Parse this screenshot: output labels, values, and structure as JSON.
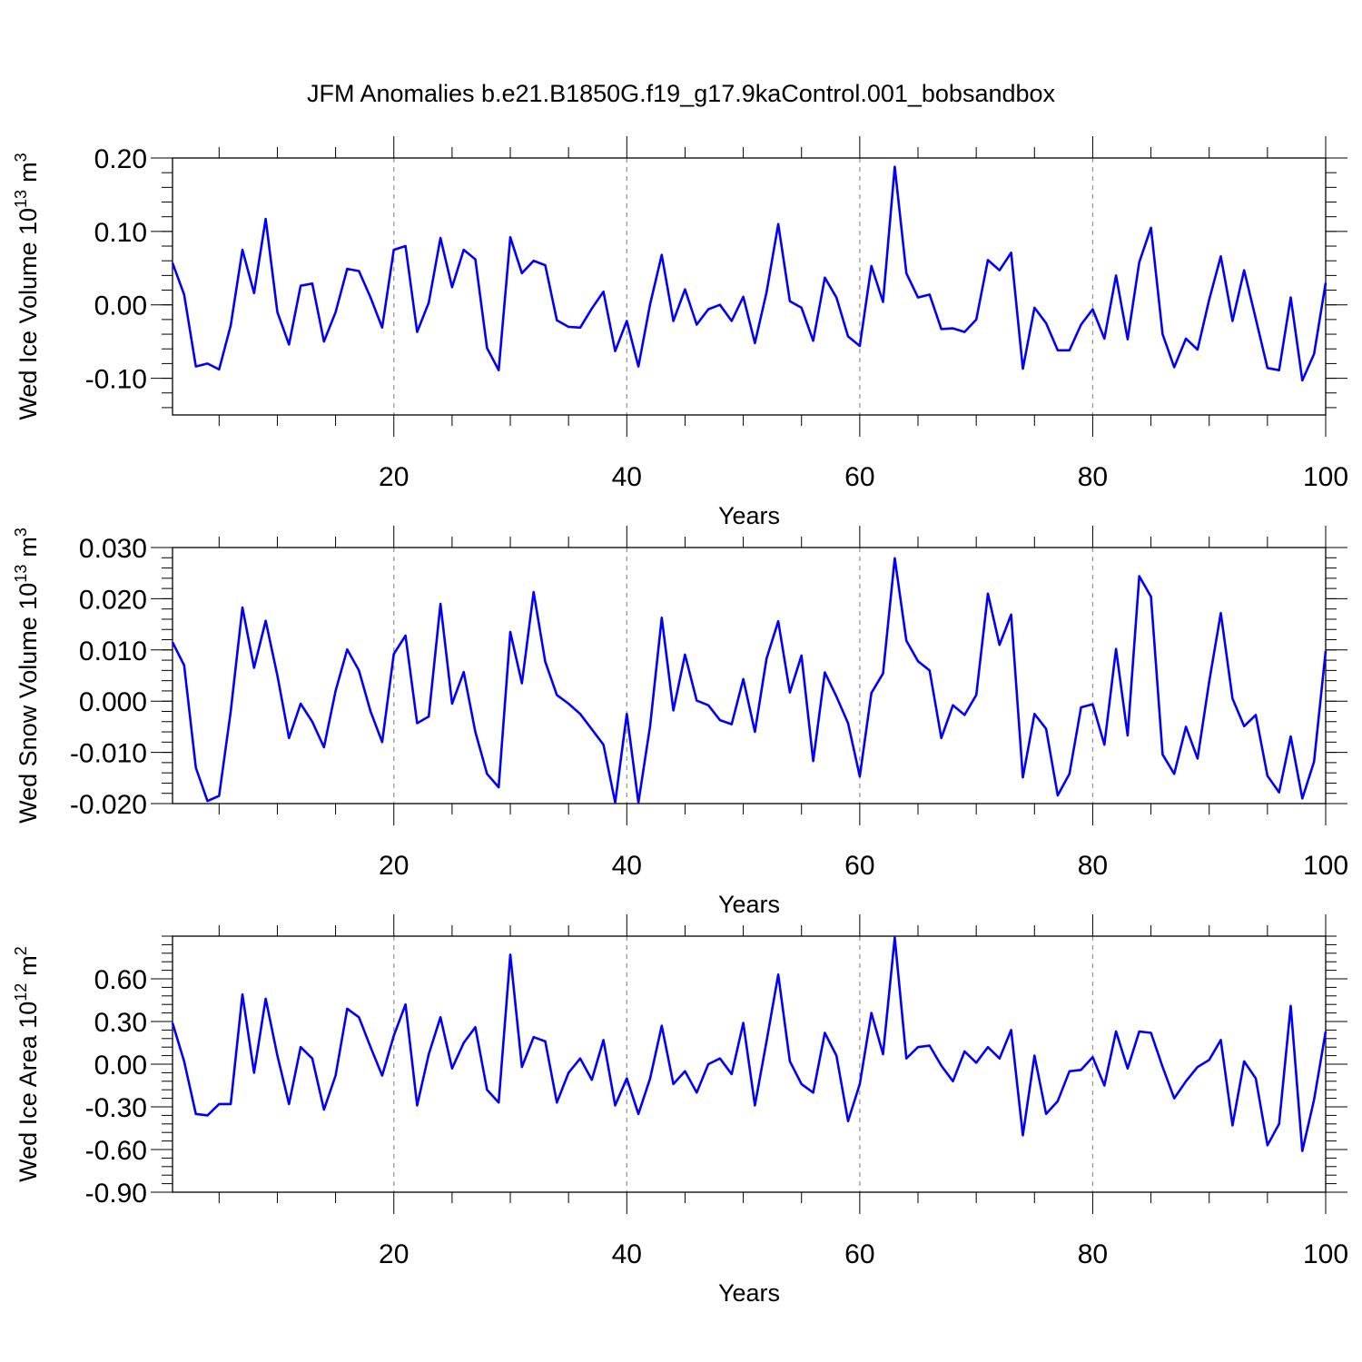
{
  "chart_data": [
    {
      "type": "line",
      "title": "JFM Anomalies b.e21.B1850G.f19_g17.9kaControl.001_bobsandbox",
      "xlabel": "Years",
      "ylabel": "Wed Ice Volume 10",
      "ylabel_sup": "13",
      "ylabel_unit": "m",
      "ylabel_unit_sup": "3",
      "xlim": [
        1,
        100
      ],
      "ylim": [
        -0.15,
        0.2
      ],
      "x_ticks": [
        "20",
        "40",
        "60",
        "80",
        "100"
      ],
      "y_ticks": [
        "-0.10",
        "0.00",
        "0.10",
        "0.20"
      ],
      "grid": "vertical dashed at 20, 40, 60, 80",
      "series": [
        {
          "name": "Wed Ice Volume",
          "color": "#0000ff",
          "values": [
            0.057,
            0.014,
            -0.084,
            -0.08,
            -0.088,
            -0.028,
            0.075,
            0.016,
            0.117,
            -0.01,
            -0.054,
            0.026,
            0.029,
            -0.05,
            -0.01,
            0.049,
            0.046,
            0.01,
            -0.031,
            0.075,
            0.08,
            -0.037,
            0.003,
            0.091,
            0.024,
            0.075,
            0.062,
            -0.059,
            -0.089,
            0.092,
            0.043,
            0.06,
            0.054,
            -0.021,
            -0.03,
            -0.031,
            -0.005,
            0.018,
            -0.063,
            -0.022,
            -0.084,
            0.001,
            0.068,
            -0.022,
            0.021,
            -0.027,
            -0.006,
            0.0,
            -0.022,
            0.011,
            -0.052,
            0.017,
            0.11,
            0.005,
            -0.004,
            -0.049,
            0.037,
            0.01,
            -0.043,
            -0.056,
            0.053,
            0.004,
            0.188,
            0.043,
            0.01,
            0.014,
            -0.033,
            -0.032,
            -0.037,
            -0.02,
            0.061,
            0.047,
            0.071,
            -0.087,
            -0.004,
            -0.025,
            -0.062,
            -0.062,
            -0.027,
            -0.006,
            -0.046,
            0.04,
            -0.047,
            0.058,
            0.105,
            -0.04,
            -0.085,
            -0.046,
            -0.061,
            0.007,
            0.066,
            -0.022,
            0.047,
            -0.019,
            -0.086,
            -0.089,
            0.01,
            -0.103,
            -0.067,
            0.03
          ]
        }
      ]
    },
    {
      "type": "line",
      "xlabel": "Years",
      "ylabel": "Wed Snow Volume 10",
      "ylabel_sup": "13",
      "ylabel_unit": "m",
      "ylabel_unit_sup": "3",
      "xlim": [
        1,
        100
      ],
      "ylim": [
        -0.02,
        0.03
      ],
      "x_ticks": [
        "20",
        "40",
        "60",
        "80",
        "100"
      ],
      "y_ticks": [
        "-0.020",
        "-0.010",
        "0.000",
        "0.010",
        "0.020",
        "0.030"
      ],
      "grid": "vertical dashed at 20, 40, 60, 80",
      "series": [
        {
          "name": "Wed Snow Volume",
          "color": "#0000ff",
          "values": [
            0.0115,
            0.007,
            -0.013,
            -0.0195,
            -0.0185,
            -0.002,
            0.0183,
            0.0065,
            0.0157,
            0.005,
            -0.0072,
            -0.0005,
            -0.004,
            -0.009,
            0.002,
            0.0101,
            0.006,
            -0.002,
            -0.008,
            0.0092,
            0.0128,
            -0.0043,
            -0.003,
            0.019,
            -0.0005,
            0.0057,
            -0.006,
            -0.0142,
            -0.0168,
            0.0135,
            0.0035,
            0.0213,
            0.0077,
            0.0012,
            -0.0005,
            -0.0025,
            -0.0055,
            -0.0085,
            -0.0198,
            -0.0025,
            -0.0198,
            -0.0048,
            0.0163,
            -0.0018,
            0.0091,
            0.0001,
            -0.0008,
            -0.0037,
            -0.0045,
            0.0043,
            -0.006,
            0.0083,
            0.0156,
            0.0017,
            0.0089,
            -0.0117,
            0.0056,
            0.0009,
            -0.0043,
            -0.0147,
            0.0016,
            0.0054,
            0.0279,
            0.0118,
            0.0078,
            0.006,
            -0.0072,
            -0.0008,
            -0.0027,
            0.0012,
            0.021,
            0.011,
            0.0169,
            -0.0149,
            -0.0025,
            -0.0054,
            -0.0184,
            -0.0142,
            -0.0012,
            -0.0006,
            -0.0085,
            0.0102,
            -0.0067,
            0.0244,
            0.0204,
            -0.0104,
            -0.0142,
            -0.005,
            -0.0112,
            0.0038,
            0.0172,
            0.0005,
            -0.0049,
            -0.0027,
            -0.0146,
            -0.0178,
            -0.0069,
            -0.019,
            -0.0118,
            0.0098
          ]
        }
      ]
    },
    {
      "type": "line",
      "xlabel": "Years",
      "ylabel": "Wed Ice Area 10",
      "ylabel_sup": "12",
      "ylabel_unit": "m",
      "ylabel_unit_sup": "2",
      "xlim": [
        1,
        100
      ],
      "ylim": [
        -0.9,
        0.9
      ],
      "x_ticks": [
        "20",
        "40",
        "60",
        "80",
        "100"
      ],
      "y_ticks": [
        "-0.90",
        "-0.60",
        "-0.30",
        "0.00",
        "0.30",
        "0.60"
      ],
      "grid": "vertical dashed at 20, 40, 60, 80",
      "series": [
        {
          "name": "Wed Ice Area",
          "color": "#0000ff",
          "values": [
            0.29,
            0.02,
            -0.35,
            -0.36,
            -0.28,
            -0.28,
            0.49,
            -0.06,
            0.46,
            0.06,
            -0.28,
            0.12,
            0.04,
            -0.32,
            -0.08,
            0.39,
            0.33,
            0.12,
            -0.08,
            0.2,
            0.42,
            -0.29,
            0.07,
            0.33,
            -0.03,
            0.15,
            0.26,
            -0.18,
            -0.27,
            0.77,
            -0.02,
            0.19,
            0.16,
            -0.27,
            -0.06,
            0.04,
            -0.11,
            0.17,
            -0.29,
            -0.1,
            -0.35,
            -0.1,
            0.27,
            -0.14,
            -0.05,
            -0.2,
            0.0,
            0.04,
            -0.07,
            0.29,
            -0.29,
            0.16,
            0.63,
            0.02,
            -0.14,
            -0.2,
            0.22,
            0.06,
            -0.4,
            -0.14,
            0.36,
            0.07,
            0.89,
            0.04,
            0.12,
            0.13,
            -0.01,
            -0.12,
            0.09,
            0.01,
            0.12,
            0.04,
            0.24,
            -0.5,
            0.06,
            -0.35,
            -0.26,
            -0.05,
            -0.04,
            0.05,
            -0.15,
            0.23,
            -0.03,
            0.23,
            0.22,
            -0.02,
            -0.24,
            -0.12,
            -0.02,
            0.03,
            0.17,
            -0.43,
            0.02,
            -0.1,
            -0.57,
            -0.42,
            0.41,
            -0.61,
            -0.25,
            0.23
          ]
        }
      ]
    }
  ]
}
